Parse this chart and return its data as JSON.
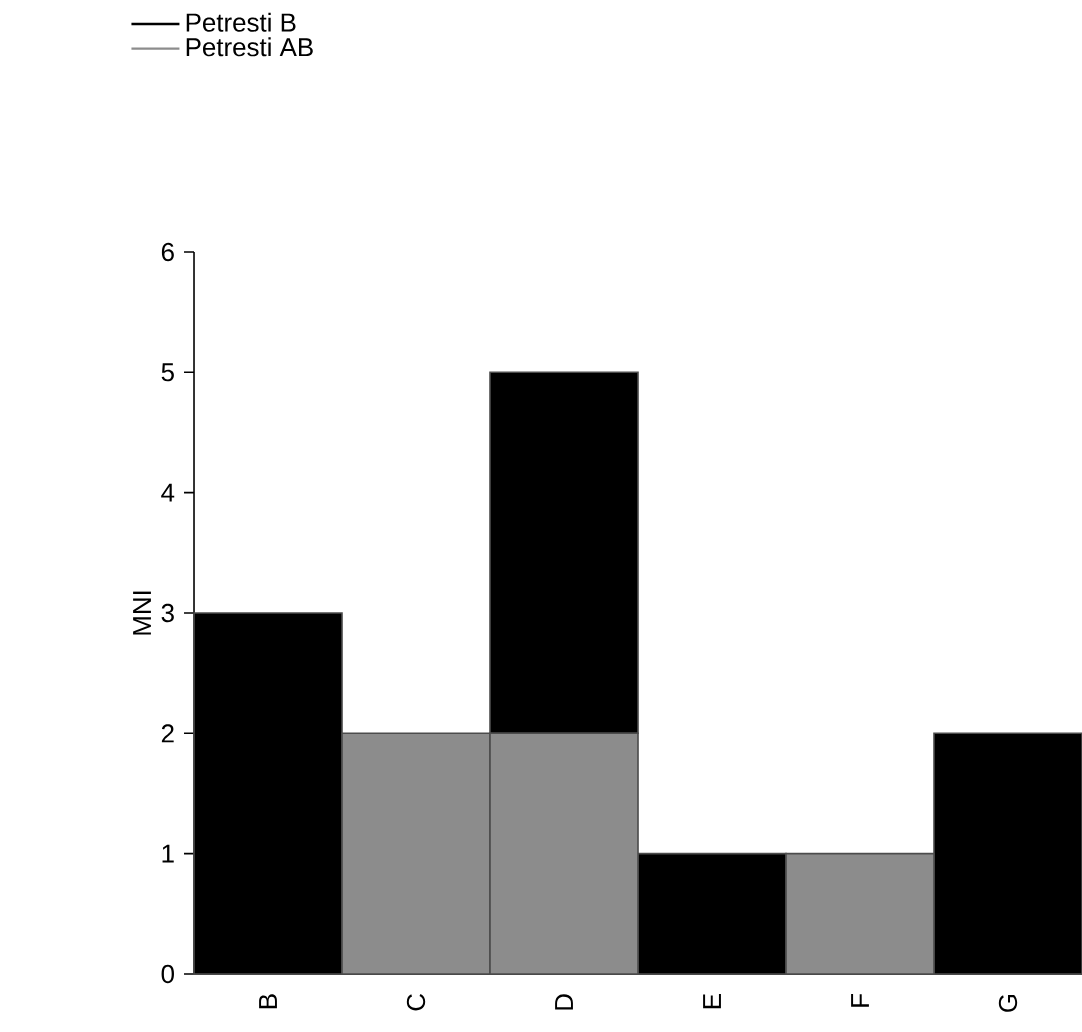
{
  "chart_data": {
    "type": "bar",
    "stacked": true,
    "ylabel": "MNI",
    "categories": [
      "B",
      "C",
      "D",
      "E",
      "F",
      "G"
    ],
    "series": [
      {
        "name": "Petresti AB",
        "color": "#8c8c8c",
        "values": [
          0,
          2,
          2,
          0,
          1,
          0
        ]
      },
      {
        "name": "Petresti B",
        "color": "#000000",
        "values": [
          3,
          0,
          3,
          1,
          0,
          2
        ]
      }
    ],
    "ylim": [
      0,
      6
    ],
    "yticks": [
      0,
      1,
      2,
      3,
      4,
      5,
      6
    ],
    "legend": "top left",
    "grid": false
  }
}
